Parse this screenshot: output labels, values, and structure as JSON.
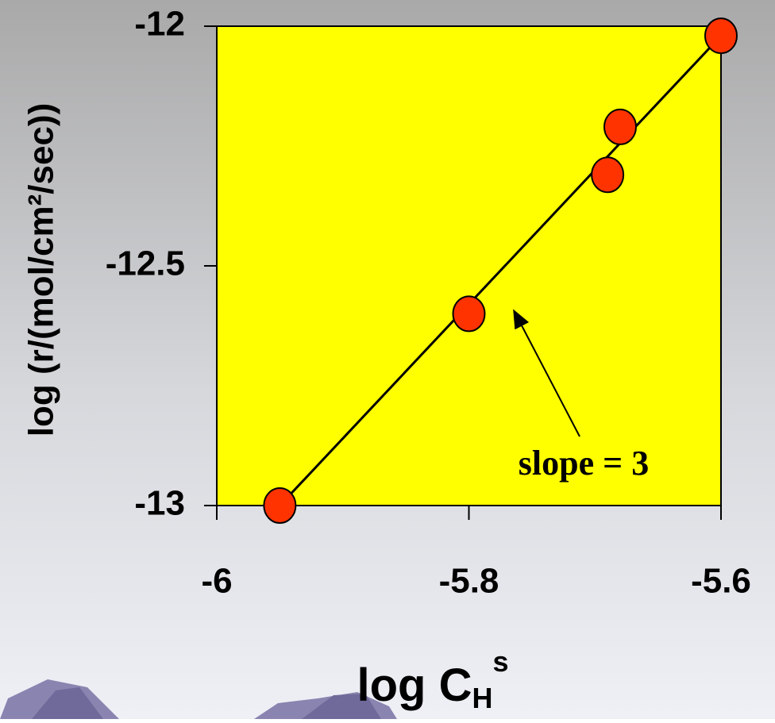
{
  "chart_data": {
    "type": "scatter",
    "x_label": {
      "text": "log C",
      "sub": "H",
      "sup": "s"
    },
    "y_label": "log (r/(mol/cm²/sec))",
    "annotation": "slope = 3",
    "x": [
      -5.95,
      -5.8,
      -5.69,
      -5.68,
      -5.6
    ],
    "values": [
      -13,
      -12.6,
      -12.31,
      -12.21,
      -12.02
    ],
    "color": "#ff3300",
    "fit_line": {
      "x": [
        -5.95,
        -5.6
      ],
      "y": [
        -13,
        -12.02
      ]
    },
    "xlim": [
      -6,
      -5.6
    ],
    "xticks": [
      -6,
      -5.8,
      -5.6
    ],
    "ylim": [
      -13,
      -12
    ],
    "yticks": [
      -12,
      -12.5,
      -13
    ],
    "plot_color": "#ffff00"
  }
}
